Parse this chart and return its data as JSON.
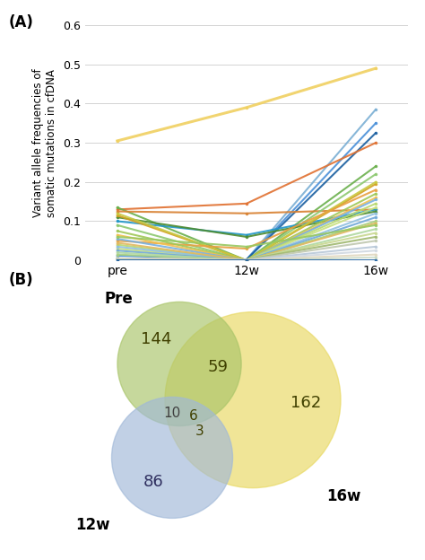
{
  "panel_a_label": "(A)",
  "panel_b_label": "(B)",
  "ylabel": "Variant allele frequencies of\nsomatic mutations in cfDNA",
  "xtick_labels": [
    "pre",
    "12w",
    "16w"
  ],
  "ylim": [
    0,
    0.6
  ],
  "yticks": [
    0,
    0.1,
    0.2,
    0.3,
    0.4,
    0.5,
    0.6
  ],
  "lines": [
    {
      "values": [
        0.305,
        0.39,
        0.49
      ],
      "color": "#f0d060",
      "lw": 2.2
    },
    {
      "values": [
        0.005,
        0.002,
        0.385
      ],
      "color": "#7bafd4",
      "lw": 1.5
    },
    {
      "values": [
        0.012,
        0.002,
        0.35
      ],
      "color": "#4a90d9",
      "lw": 1.5
    },
    {
      "values": [
        0.002,
        0.002,
        0.325
      ],
      "color": "#1a5fa0",
      "lw": 1.5
    },
    {
      "values": [
        0.13,
        0.145,
        0.3
      ],
      "color": "#e07030",
      "lw": 1.5
    },
    {
      "values": [
        0.135,
        0.0,
        0.24
      ],
      "color": "#6ab04c",
      "lw": 1.5
    },
    {
      "values": [
        0.125,
        0.12,
        0.13
      ],
      "color": "#d88030",
      "lw": 1.5
    },
    {
      "values": [
        0.09,
        0.0,
        0.22
      ],
      "color": "#8dc870",
      "lw": 1.5
    },
    {
      "values": [
        0.1,
        0.065,
        0.13
      ],
      "color": "#2196c8",
      "lw": 1.5
    },
    {
      "values": [
        0.11,
        0.06,
        0.125
      ],
      "color": "#4a8a30",
      "lw": 1.5
    },
    {
      "values": [
        0.115,
        0.0,
        0.195
      ],
      "color": "#d4a020",
      "lw": 1.5
    },
    {
      "values": [
        0.12,
        0.0,
        0.2
      ],
      "color": "#c8c840",
      "lw": 1.5
    },
    {
      "values": [
        0.05,
        0.03,
        0.18
      ],
      "color": "#e8a040",
      "lw": 1.5
    },
    {
      "values": [
        0.075,
        0.0,
        0.17
      ],
      "color": "#a0c858",
      "lw": 1.5
    },
    {
      "values": [
        0.065,
        0.0,
        0.16
      ],
      "color": "#f0c050",
      "lw": 1.5
    },
    {
      "values": [
        0.055,
        0.0,
        0.155
      ],
      "color": "#78b0e0",
      "lw": 1.5
    },
    {
      "values": [
        0.04,
        0.0,
        0.145
      ],
      "color": "#b8d870",
      "lw": 1.5
    },
    {
      "values": [
        0.03,
        0.0,
        0.135
      ],
      "color": "#c8e080",
      "lw": 1.5
    },
    {
      "values": [
        0.035,
        0.0,
        0.12
      ],
      "color": "#90c0e0",
      "lw": 1.5
    },
    {
      "values": [
        0.025,
        0.0,
        0.11
      ],
      "color": "#70a8d8",
      "lw": 1.5
    },
    {
      "values": [
        0.015,
        0.0,
        0.1
      ],
      "color": "#a8d080",
      "lw": 1.5
    },
    {
      "values": [
        0.045,
        0.0,
        0.095
      ],
      "color": "#e0b860",
      "lw": 1.5
    },
    {
      "values": [
        0.06,
        0.035,
        0.09
      ],
      "color": "#98c860",
      "lw": 1.5
    },
    {
      "values": [
        0.02,
        0.0,
        0.08
      ],
      "color": "#b0d8a0",
      "lw": 1.5
    },
    {
      "values": [
        0.005,
        0.002,
        0.07
      ],
      "color": "#c8d890",
      "lw": 1.5
    },
    {
      "values": [
        0.005,
        0.002,
        0.06
      ],
      "color": "#a0b870",
      "lw": 1.5
    },
    {
      "values": [
        0.005,
        0.001,
        0.05
      ],
      "color": "#c0c8b0",
      "lw": 1.5
    },
    {
      "values": [
        0.005,
        0.001,
        0.035
      ],
      "color": "#b8c8d8",
      "lw": 1.5
    },
    {
      "values": [
        0.005,
        0.001,
        0.025
      ],
      "color": "#d0d8e0",
      "lw": 1.5
    },
    {
      "values": [
        0.005,
        0.001,
        0.015
      ],
      "color": "#e0d8c0",
      "lw": 1.5
    },
    {
      "values": [
        0.002,
        0.0,
        0.008
      ],
      "color": "#c8d8c0",
      "lw": 1.2
    },
    {
      "values": [
        0.0,
        0.0,
        0.0
      ],
      "color": "#2060a0",
      "lw": 1.5
    }
  ],
  "venn_pre_color": "#a8c468",
  "venn_16w_color": "#e8d860",
  "venn_12w_color": "#a0b8d8",
  "venn_alpha": 0.65,
  "label_pre": "Pre",
  "label_16w": "16w",
  "label_12w": "12w",
  "n_pre": "144",
  "n_16w": "162",
  "n_pre_16w": "59",
  "n_pre_12w": "10",
  "n_pre_12w_16w": "6",
  "n_12w_16w": "3",
  "n_12w": "86",
  "text_color": "#404000"
}
